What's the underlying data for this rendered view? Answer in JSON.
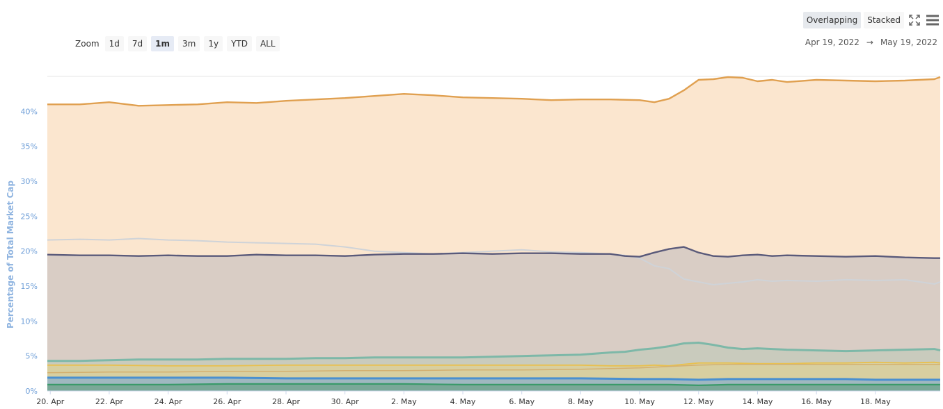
{
  "toolbar": {
    "overlapping_label": "Overlapping",
    "stacked_label": "Stacked",
    "fullscreen_icon": "fullscreen-icon",
    "menu_icon": "hamburger-menu-icon"
  },
  "zoom": {
    "label": "Zoom",
    "options": [
      "1d",
      "7d",
      "1m",
      "3m",
      "1y",
      "YTD",
      "ALL"
    ],
    "selected": "1m"
  },
  "range": {
    "from": "Apr 19, 2022",
    "separator": "→",
    "to": "May 19, 2022"
  },
  "chart_data": {
    "type": "area",
    "ylabel": "Percentage of Total Market Cap",
    "y_ticks": [
      "0%",
      "5%",
      "10%",
      "15%",
      "20%",
      "25%",
      "30%",
      "35%",
      "40%"
    ],
    "ylim": [
      0,
      45
    ],
    "x_ticks": [
      "20. Apr",
      "22. Apr",
      "24. Apr",
      "26. Apr",
      "28. Apr",
      "30. Apr",
      "2. May",
      "4. May",
      "6. May",
      "8. May",
      "10. May",
      "12. May",
      "14. May",
      "16. May",
      "18. May"
    ],
    "x_days": [
      1,
      3,
      5,
      7,
      9,
      11,
      13,
      15,
      17,
      19,
      21,
      23,
      25,
      27,
      29
    ],
    "xlim": [
      0.9,
      31.2
    ],
    "grid": true,
    "series": [
      {
        "color": "#e0a050",
        "fill": "#fbe6cf",
        "line_width": 2.4,
        "x": [
          0.9,
          2,
          3,
          4,
          5,
          6,
          7,
          8,
          9,
          10,
          11,
          12,
          13,
          14,
          15,
          16,
          17,
          18,
          19,
          20,
          21,
          21.5,
          22,
          22.5,
          23,
          23.5,
          24,
          24.5,
          25,
          25.5,
          26,
          27,
          28,
          29,
          30,
          31,
          31.2
        ],
        "values": [
          41.0,
          41.0,
          41.3,
          40.8,
          40.9,
          41.0,
          41.3,
          41.2,
          41.5,
          41.7,
          41.9,
          42.2,
          42.5,
          42.3,
          42.0,
          41.9,
          41.8,
          41.6,
          41.7,
          41.7,
          41.6,
          41.3,
          41.8,
          43.0,
          44.5,
          44.6,
          44.9,
          44.8,
          44.3,
          44.5,
          44.2,
          44.5,
          44.4,
          44.3,
          44.4,
          44.6,
          44.9
        ]
      },
      {
        "color": "#cfd3d8",
        "fill": "none",
        "line_width": 2,
        "x": [
          0.9,
          2,
          3,
          4,
          5,
          6,
          7,
          8,
          9,
          10,
          11,
          12,
          13,
          14,
          15,
          16,
          17,
          18,
          19,
          20,
          20.5,
          21,
          21.5,
          22,
          22.5,
          23,
          23.5,
          24,
          24.5,
          25,
          25.5,
          26,
          27,
          28,
          29,
          30,
          31,
          31.2
        ],
        "values": [
          21.6,
          21.7,
          21.6,
          21.8,
          21.6,
          21.5,
          21.3,
          21.2,
          21.1,
          21.0,
          20.6,
          20.0,
          19.8,
          19.6,
          19.8,
          20.0,
          20.2,
          19.9,
          19.8,
          19.6,
          19.4,
          19.0,
          17.9,
          17.5,
          16.0,
          15.6,
          15.2,
          15.4,
          15.6,
          15.9,
          15.7,
          15.8,
          15.7,
          15.9,
          15.8,
          15.9,
          15.3,
          15.6
        ]
      },
      {
        "color": "#5a5a7a",
        "fill": "#d9cdc5",
        "line_width": 2.4,
        "x": [
          0.9,
          2,
          3,
          4,
          5,
          6,
          7,
          8,
          9,
          10,
          11,
          12,
          13,
          14,
          15,
          16,
          17,
          18,
          19,
          20,
          20.5,
          21,
          21.5,
          22,
          22.5,
          23,
          23.5,
          24,
          24.5,
          25,
          25.5,
          26,
          27,
          28,
          29,
          30,
          31,
          31.2
        ],
        "values": [
          19.5,
          19.4,
          19.4,
          19.3,
          19.4,
          19.3,
          19.3,
          19.5,
          19.4,
          19.4,
          19.3,
          19.5,
          19.6,
          19.6,
          19.7,
          19.6,
          19.7,
          19.7,
          19.6,
          19.6,
          19.3,
          19.2,
          19.8,
          20.3,
          20.6,
          19.8,
          19.3,
          19.2,
          19.4,
          19.5,
          19.3,
          19.4,
          19.3,
          19.2,
          19.3,
          19.1,
          19.0,
          19.0
        ]
      },
      {
        "color": "#7db8a8",
        "fill": "#c9cbbd",
        "line_width": 3,
        "x": [
          0.9,
          2,
          3,
          4,
          5,
          6,
          7,
          8,
          9,
          10,
          11,
          12,
          13,
          14,
          15,
          16,
          17,
          18,
          19,
          20,
          20.5,
          21,
          21.5,
          22,
          22.5,
          23,
          23.5,
          24,
          24.5,
          25,
          25.5,
          26,
          27,
          28,
          29,
          30,
          31,
          31.2
        ],
        "values": [
          4.3,
          4.3,
          4.4,
          4.5,
          4.5,
          4.5,
          4.6,
          4.6,
          4.6,
          4.7,
          4.7,
          4.8,
          4.8,
          4.8,
          4.8,
          4.9,
          5.0,
          5.1,
          5.2,
          5.5,
          5.6,
          5.9,
          6.1,
          6.4,
          6.8,
          6.9,
          6.6,
          6.2,
          6.0,
          6.1,
          6.0,
          5.9,
          5.8,
          5.7,
          5.8,
          5.9,
          6.0,
          5.8
        ]
      },
      {
        "color": "#e8c050",
        "fill": "#d8cfa0",
        "line_width": 1.8,
        "x": [
          0.9,
          3,
          5,
          7,
          9,
          11,
          13,
          15,
          17,
          19,
          20,
          21,
          21.5,
          22,
          22.5,
          23,
          24,
          25,
          26,
          27,
          28,
          29,
          30,
          31,
          31.2
        ],
        "values": [
          3.7,
          3.7,
          3.6,
          3.6,
          3.7,
          3.7,
          3.7,
          3.7,
          3.7,
          3.7,
          3.6,
          3.6,
          3.7,
          3.6,
          3.8,
          4.0,
          4.0,
          3.9,
          3.9,
          4.0,
          4.0,
          4.1,
          4.0,
          4.1,
          4.0
        ]
      },
      {
        "color": "#d4b070",
        "fill": "none",
        "line_width": 1.5,
        "x": [
          0.9,
          3,
          5,
          7,
          9,
          11,
          13,
          15,
          17,
          19,
          20,
          21,
          21.5,
          22,
          22.5,
          23,
          24,
          25,
          26,
          27,
          28,
          29,
          30,
          31,
          31.2
        ],
        "values": [
          2.6,
          2.7,
          2.7,
          2.8,
          2.8,
          2.9,
          2.9,
          3.0,
          3.0,
          3.1,
          3.2,
          3.3,
          3.4,
          3.5,
          3.6,
          3.7,
          3.8,
          3.8,
          3.8,
          3.8,
          3.8,
          3.8,
          3.8,
          3.8,
          3.8
        ]
      },
      {
        "color": "#4a90d0",
        "fill": "#9fb8c0",
        "line_width": 3,
        "x": [
          0.9,
          3,
          5,
          7,
          9,
          11,
          13,
          15,
          17,
          19,
          21,
          22,
          23,
          24,
          25,
          26,
          27,
          28,
          29,
          30,
          31,
          31.2
        ],
        "values": [
          1.9,
          1.9,
          1.9,
          1.9,
          1.8,
          1.8,
          1.8,
          1.8,
          1.8,
          1.8,
          1.7,
          1.7,
          1.6,
          1.7,
          1.7,
          1.7,
          1.7,
          1.7,
          1.6,
          1.6,
          1.6,
          1.6
        ]
      },
      {
        "color": "#3a9a6a",
        "fill": "#7aa898",
        "line_width": 2.2,
        "x": [
          0.9,
          3,
          5,
          7,
          9,
          11,
          13,
          15,
          17,
          19,
          21,
          22,
          23,
          24,
          25,
          26,
          27,
          28,
          29,
          30,
          31,
          31.2
        ],
        "values": [
          0.9,
          0.9,
          0.9,
          1.0,
          1.0,
          1.0,
          1.0,
          0.9,
          0.9,
          0.9,
          0.9,
          0.9,
          0.8,
          0.9,
          0.9,
          0.9,
          0.9,
          0.9,
          0.9,
          0.9,
          0.9,
          0.9
        ]
      }
    ]
  }
}
